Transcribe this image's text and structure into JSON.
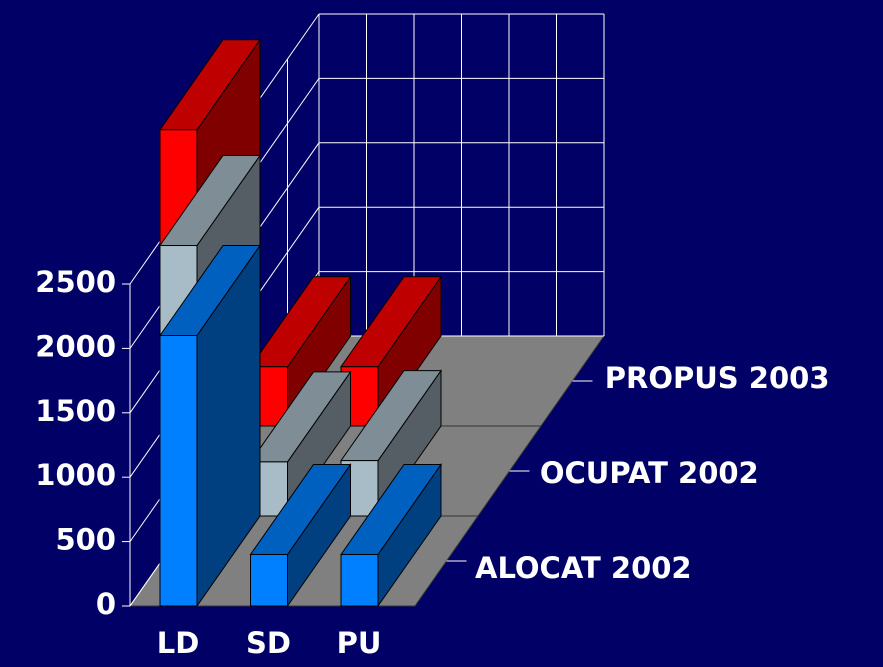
{
  "chart_data": {
    "type": "bar3d",
    "categories": [
      "LD",
      "SD",
      "PU"
    ],
    "series": [
      {
        "name": "ALOCAT 2002",
        "color": "#0080ff",
        "values": [
          2100,
          400,
          400
        ]
      },
      {
        "name": "OCUPAT 2002",
        "color": "#a8bcc8",
        "values": [
          2100,
          420,
          430
        ]
      },
      {
        "name": "PROPUS 2003",
        "color": "#ff0000",
        "values": [
          2300,
          460,
          460
        ]
      }
    ],
    "ylim": [
      0,
      2500
    ],
    "yticks": [
      0,
      500,
      1000,
      1500,
      2000,
      2500
    ],
    "grid": true
  }
}
